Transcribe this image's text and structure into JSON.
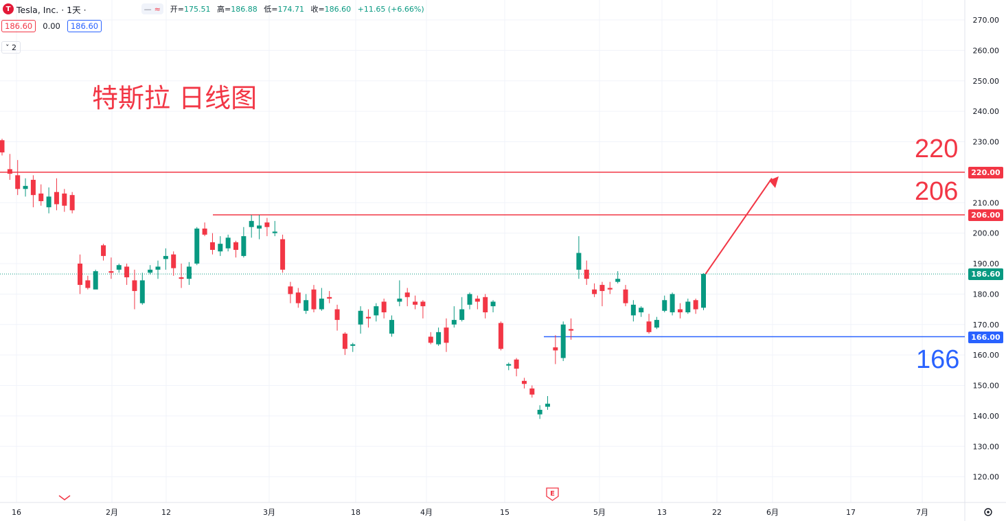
{
  "header": {
    "logo_letter": "T",
    "symbol_label": "Tesla, Inc. · 1天 ·",
    "pill_minus": "—",
    "pill_wave": "≈",
    "open_label": "开=",
    "open": "175.51",
    "high_label": "高=",
    "high": "186.88",
    "low_label": "低=",
    "low": "174.71",
    "close_label": "收=",
    "close": "186.60",
    "change": "+11.65 (+6.66%)"
  },
  "trade": {
    "sell": "186.60",
    "spread": "0.00",
    "buy": "186.60"
  },
  "indicator_toggle": "˅ 2",
  "annotation_title": "特斯拉 日线图",
  "levels": {
    "l220": "220",
    "l206": "206",
    "l166": "166"
  },
  "price_tags": {
    "t220": "220.00",
    "t206": "206.00",
    "tlast": "186.60",
    "t166": "166.00"
  },
  "colors": {
    "up": "#089981",
    "down": "#f23645",
    "red_line": "#f23645",
    "blue_line": "#2962ff",
    "grid": "#f0f3fa"
  },
  "chart_data": {
    "type": "candlestick",
    "y_axis": {
      "ticks": [
        120,
        130,
        140,
        150,
        160,
        170,
        180,
        190,
        200,
        210,
        220,
        230,
        240,
        250,
        260,
        270
      ],
      "range": [
        115,
        273
      ]
    },
    "x_tick_labels": [
      "16",
      "2月",
      "12",
      "3月",
      "18",
      "4月",
      "15",
      "5月",
      "13",
      "22",
      "6月",
      "17",
      "7月"
    ],
    "earnings_marker": "E",
    "horizontal_lines": [
      {
        "price": 220,
        "color": "red"
      },
      {
        "price": 206,
        "color": "red"
      },
      {
        "price": 166,
        "color": "blue"
      }
    ],
    "last_price": 186.6,
    "candles": [
      [
        230.5,
        226.5,
        231,
        225.5
      ],
      [
        221.0,
        219.5,
        226,
        217.5
      ],
      [
        219.0,
        214.5,
        224,
        212.5
      ],
      [
        214.5,
        215.5,
        218,
        212
      ],
      [
        217.5,
        212.5,
        219,
        208.5
      ],
      [
        213.0,
        210.5,
        216,
        209
      ],
      [
        208.5,
        212.0,
        215,
        206.5
      ],
      [
        213.5,
        209.5,
        218,
        207.5
      ],
      [
        213.0,
        209.0,
        214.5,
        207
      ],
      [
        212.5,
        207.5,
        213.5,
        206.5
      ],
      [
        190.0,
        183.0,
        193,
        180
      ],
      [
        184.5,
        182.0,
        186,
        181.5
      ],
      [
        181.5,
        187.5,
        188,
        182
      ],
      [
        196.0,
        192.5,
        196.5,
        191
      ],
      [
        187.5,
        187.0,
        192,
        185
      ],
      [
        188.0,
        189.5,
        190,
        187
      ],
      [
        189.0,
        185.5,
        190,
        183
      ],
      [
        184.5,
        181.0,
        188,
        175
      ],
      [
        177.0,
        184.5,
        187,
        176.5
      ],
      [
        187.0,
        188.0,
        189.5,
        186.5
      ],
      [
        188.0,
        189.0,
        191,
        185
      ],
      [
        191.5,
        192.5,
        195,
        188
      ],
      [
        193.0,
        188.5,
        194,
        186
      ],
      [
        185.5,
        185.0,
        190,
        182
      ],
      [
        185.0,
        189.0,
        190.5,
        183
      ],
      [
        190.0,
        201.5,
        202,
        189.5
      ],
      [
        201.5,
        199.5,
        203.5,
        199
      ],
      [
        197.0,
        194.5,
        200,
        193
      ],
      [
        194.0,
        196.5,
        199,
        192.5
      ],
      [
        195.0,
        198.5,
        199.5,
        194
      ],
      [
        197.0,
        194.5,
        197.5,
        192
      ],
      [
        192.5,
        199.0,
        202,
        192
      ],
      [
        202.0,
        204.0,
        206,
        198.5
      ],
      [
        201.5,
        202.5,
        206,
        198
      ],
      [
        203.5,
        202.0,
        205,
        199
      ],
      [
        200.0,
        200.5,
        204,
        199
      ],
      [
        198.0,
        188.0,
        199.5,
        187
      ],
      [
        182.5,
        180.0,
        184,
        177
      ],
      [
        180.5,
        177.0,
        182,
        175.5
      ],
      [
        174.5,
        178.0,
        180,
        173.5
      ],
      [
        181.5,
        175.0,
        183,
        174
      ],
      [
        175.0,
        178.5,
        182,
        174.5
      ],
      [
        179.0,
        178.5,
        181,
        177
      ],
      [
        175.0,
        171.5,
        176.5,
        168
      ],
      [
        167.0,
        162.0,
        167.5,
        160
      ],
      [
        163.0,
        163.5,
        164,
        161
      ],
      [
        170.0,
        174.5,
        176,
        167
      ],
      [
        172.5,
        172.0,
        175,
        169
      ],
      [
        173.0,
        176.0,
        177,
        171
      ],
      [
        177.5,
        174.0,
        178.5,
        172
      ],
      [
        167.0,
        171.5,
        173,
        166
      ],
      [
        177.5,
        178.5,
        184.5,
        176
      ],
      [
        180.5,
        179.0,
        182,
        176
      ],
      [
        177.5,
        176.5,
        179.5,
        175
      ],
      [
        177.5,
        176.0,
        178,
        172
      ],
      [
        166.0,
        164.0,
        167.5,
        163.5
      ],
      [
        163.5,
        167.5,
        169,
        163
      ],
      [
        169.0,
        164.0,
        172,
        161
      ],
      [
        170.0,
        171.5,
        176,
        169
      ],
      [
        171.5,
        175.0,
        179,
        171
      ],
      [
        176.5,
        180.0,
        180.5,
        175
      ],
      [
        178.5,
        177.5,
        179.5,
        175
      ],
      [
        179.0,
        174.0,
        180,
        172
      ],
      [
        176.0,
        177.5,
        178,
        174
      ],
      [
        170.5,
        162.0,
        171,
        161.5
      ],
      [
        156.5,
        157.0,
        157.5,
        155
      ],
      [
        158.5,
        155.5,
        159,
        153
      ],
      [
        151.5,
        150.5,
        152.5,
        149
      ],
      [
        149.0,
        147.0,
        150,
        146
      ],
      [
        140.5,
        142.0,
        143.5,
        139
      ],
      [
        143.0,
        144.0,
        146.5,
        142
      ],
      [
        162.5,
        161.5,
        166.5,
        157
      ],
      [
        159.0,
        170.0,
        171,
        158
      ],
      [
        168.5,
        168.0,
        172,
        165
      ],
      [
        188.0,
        193.5,
        199,
        185
      ],
      [
        188.0,
        185.0,
        191,
        183
      ],
      [
        181.5,
        180.0,
        183.5,
        179
      ],
      [
        183.0,
        181.0,
        184,
        176
      ],
      [
        182.0,
        181.5,
        184,
        180
      ],
      [
        184.0,
        185.0,
        187.5,
        183.5
      ],
      [
        181.5,
        177.0,
        183,
        176
      ],
      [
        173.0,
        176.5,
        178,
        171
      ],
      [
        174.0,
        175.5,
        176,
        172.5
      ],
      [
        171.0,
        167.5,
        173.5,
        167
      ],
      [
        169.0,
        171.5,
        172.5,
        168.5
      ],
      [
        174.5,
        178.0,
        179.5,
        174
      ],
      [
        174.0,
        180.0,
        180.5,
        173
      ],
      [
        175.0,
        174.0,
        177,
        172
      ],
      [
        174.0,
        177.5,
        178.5,
        173.5
      ],
      [
        178.0,
        175.0,
        178.5,
        173.5
      ],
      [
        175.51,
        186.6,
        186.88,
        174.71
      ]
    ]
  }
}
